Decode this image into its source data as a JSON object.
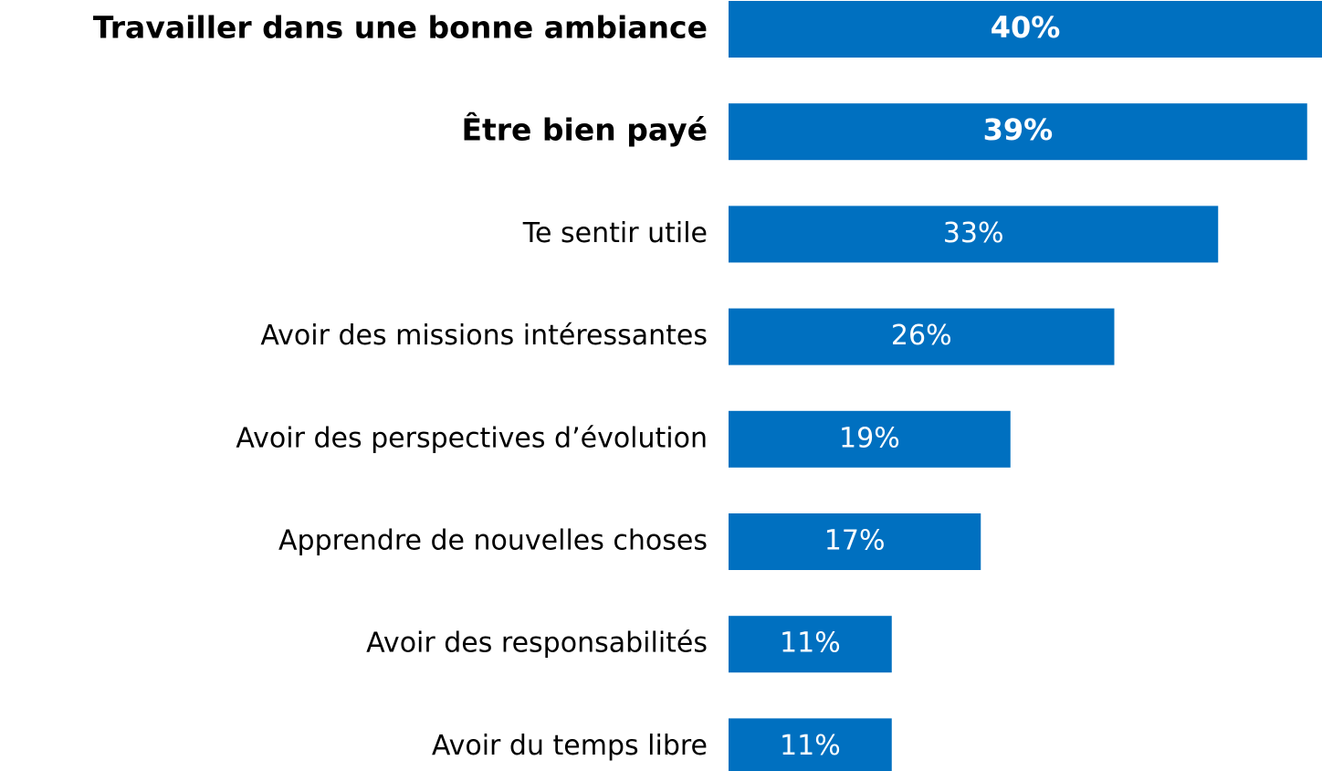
{
  "chart_data": {
    "type": "bar",
    "orientation": "horizontal",
    "categories": [
      "Travailler dans une bonne ambiance",
      "Être bien payé",
      "Te sentir utile",
      "Avoir des missions intéressantes",
      "Avoir des perspectives d’évolution",
      "Apprendre de nouvelles choses",
      "Avoir des responsabilités",
      "Avoir du temps libre"
    ],
    "values": [
      40,
      39,
      33,
      26,
      19,
      17,
      11,
      11
    ],
    "value_labels": [
      "40%",
      "39%",
      "33%",
      "26%",
      "19%",
      "17%",
      "11%",
      "11%"
    ],
    "bold": [
      true,
      true,
      false,
      false,
      false,
      false,
      false,
      false
    ],
    "color": "#0070c0"
  }
}
